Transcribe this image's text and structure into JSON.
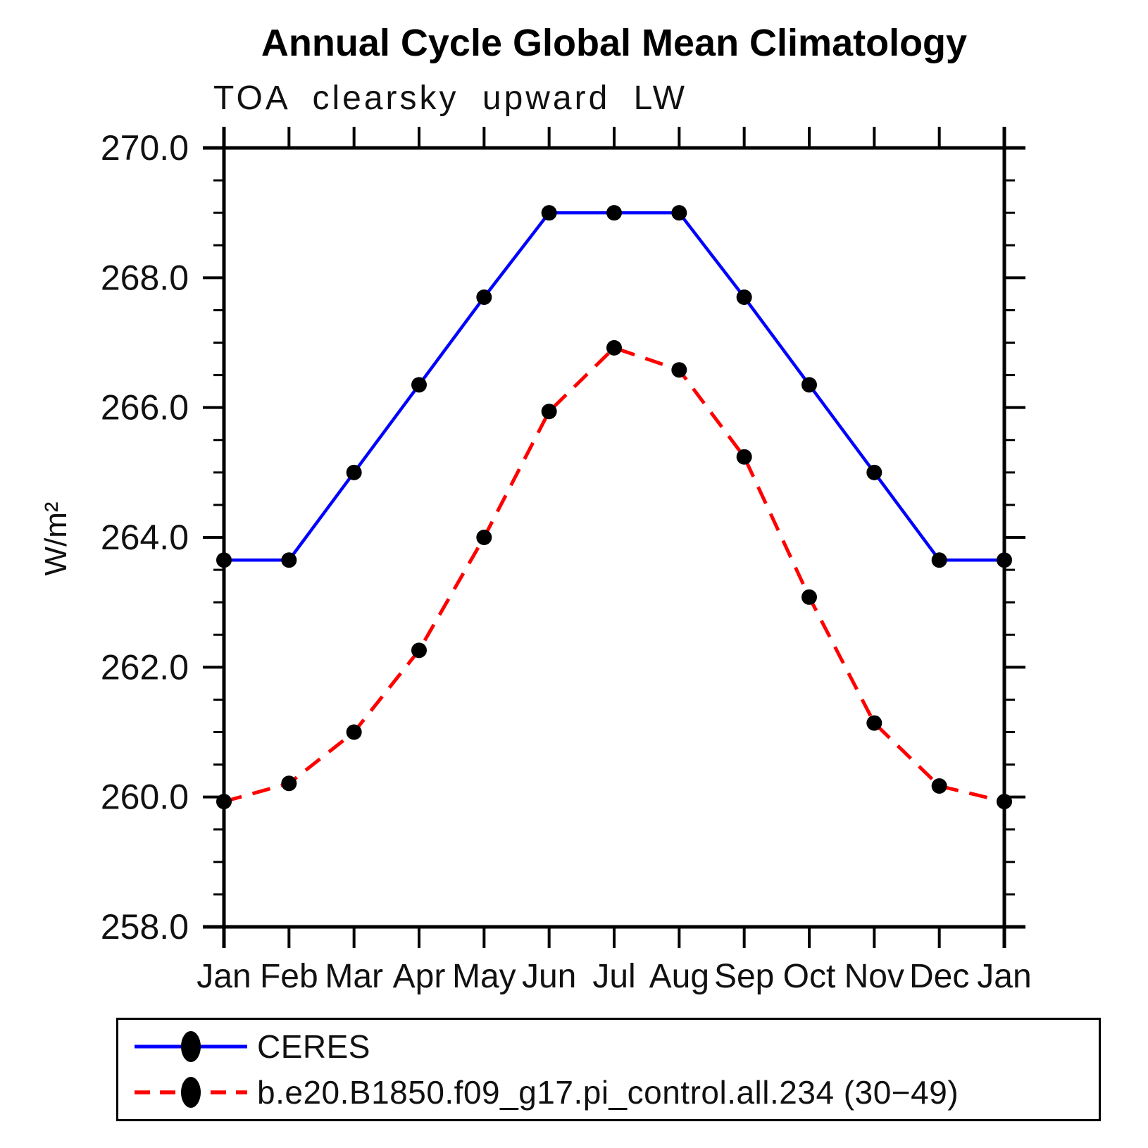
{
  "chart_data": {
    "type": "line",
    "title": "Annual Cycle Global Mean Climatology",
    "subtitle": "TOA clearsky upward LW",
    "xlabel": "",
    "ylabel": "W/m²",
    "categories": [
      "Jan",
      "Feb",
      "Mar",
      "Apr",
      "May",
      "Jun",
      "Jul",
      "Aug",
      "Sep",
      "Oct",
      "Nov",
      "Dec",
      "Jan"
    ],
    "ylim": [
      258.0,
      270.0
    ],
    "ytick_major_step": 2.0,
    "ytick_minor_step": 0.5,
    "ytick_labels": [
      "258.0",
      "260.0",
      "262.0",
      "264.0",
      "266.0",
      "268.0",
      "270.0"
    ],
    "grid": false,
    "axis_color": "#000000",
    "legend_position": "bottom-left",
    "series": [
      {
        "name": "CERES",
        "color": "#0000ff",
        "line_style": "solid",
        "marker": "filled-circle",
        "marker_color": "#000000",
        "values": [
          263.65,
          263.65,
          265.0,
          266.35,
          267.7,
          269.0,
          269.0,
          269.0,
          267.7,
          266.35,
          265.0,
          263.65,
          263.65
        ]
      },
      {
        "name": "b.e20.B1850.f09_g17.pi_control.all.234 (30−49)",
        "color": "#ff0000",
        "line_style": "dashed",
        "marker": "filled-circle",
        "marker_color": "#000000",
        "values": [
          259.93,
          260.21,
          261.0,
          262.26,
          264.0,
          265.94,
          266.92,
          266.58,
          265.24,
          263.08,
          261.14,
          260.17,
          259.93
        ]
      }
    ]
  }
}
